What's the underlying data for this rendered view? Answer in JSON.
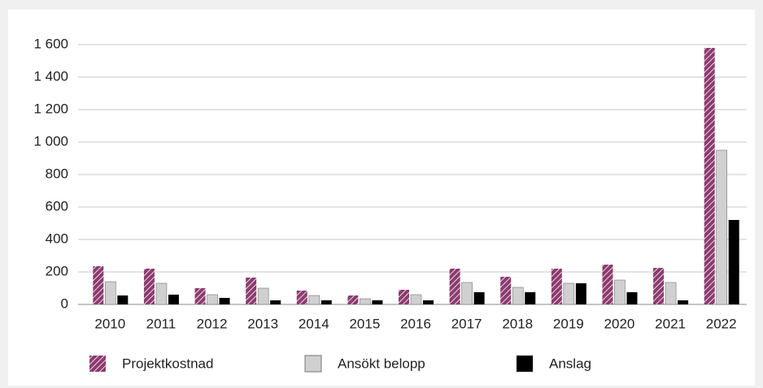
{
  "chart_data": {
    "type": "bar",
    "categories": [
      "2010",
      "2011",
      "2012",
      "2013",
      "2014",
      "2015",
      "2016",
      "2017",
      "2018",
      "2019",
      "2020",
      "2021",
      "2022"
    ],
    "series": [
      {
        "name": "Projektkostnad",
        "color": "#8c3b6f",
        "values": [
          235,
          220,
          100,
          165,
          85,
          55,
          90,
          220,
          170,
          220,
          245,
          225,
          1580
        ]
      },
      {
        "name": "Ansökt belopp",
        "color": "#d0d0d0",
        "values": [
          140,
          130,
          60,
          100,
          55,
          35,
          60,
          135,
          105,
          130,
          150,
          135,
          950
        ]
      },
      {
        "name": "Anslag",
        "color": "#000000",
        "values": [
          55,
          60,
          40,
          25,
          25,
          25,
          25,
          75,
          75,
          130,
          75,
          25,
          520
        ]
      }
    ],
    "ylim": [
      0,
      1600
    ],
    "yticks": [
      0,
      200,
      400,
      600,
      800,
      {
        "value": 1000,
        "label": "1 000"
      },
      {
        "value": 1200,
        "label": "1 200"
      },
      {
        "value": 1400,
        "label": "1 400"
      },
      {
        "value": 1600,
        "label": "1 600"
      }
    ],
    "grid": true,
    "legend": "bottom"
  }
}
